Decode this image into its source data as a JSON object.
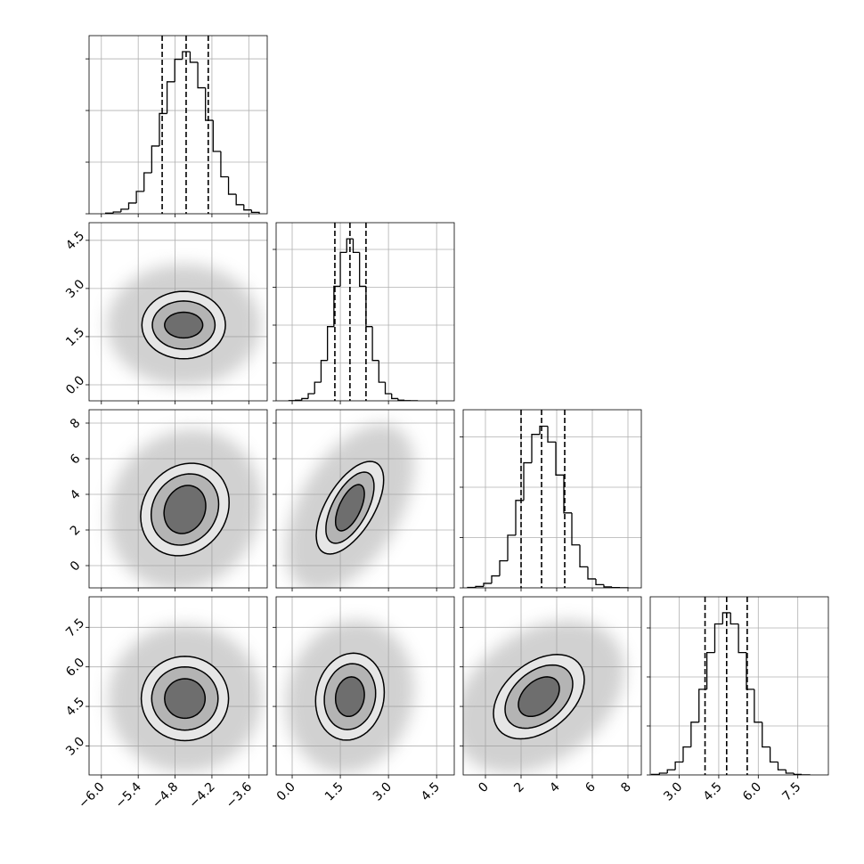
{
  "chart_data": [
    {
      "type": "histogram",
      "color": "#000000",
      "grid": true,
      "xlim": [
        -6.2,
        -3.3
      ],
      "xticks": [
        {
          "value": -6,
          "label": "−6.0"
        },
        {
          "value": -5.4,
          "label": "−5.4"
        },
        {
          "value": -4.8,
          "label": "−4.8"
        },
        {
          "value": -4.2,
          "label": "−4.2"
        },
        {
          "value": -3.6,
          "label": "−3.6"
        }
      ],
      "ylim": [
        0,
        1725
      ],
      "yticks": [
        0,
        500,
        1000,
        1500
      ],
      "bins": [
        -5.93,
        -5.805,
        -5.68,
        -5.555,
        -5.43,
        -5.305,
        -5.18,
        -5.055,
        -4.93,
        -4.805,
        -4.68,
        -4.555,
        -4.43,
        -4.305,
        -4.18,
        -4.055,
        -3.93,
        -3.805,
        -3.68,
        -3.555,
        -3.43
      ],
      "values": [
        6,
        17,
        44,
        104,
        217,
        397,
        656,
        971,
        1278,
        1496,
        1570,
        1467,
        1220,
        905,
        604,
        358,
        189,
        88,
        37,
        14
      ],
      "quantiles": [
        -5.01,
        -4.62,
        -4.26
      ]
    },
    {
      "type": "contour",
      "color": "#000000",
      "grid": true,
      "xlim": [
        -6.2,
        -3.3
      ],
      "xticks": [
        {
          "value": -6,
          "label": "−6.0"
        },
        {
          "value": -5.4,
          "label": "−5.4"
        },
        {
          "value": -4.8,
          "label": "−4.8"
        },
        {
          "value": -4.2,
          "label": "−4.2"
        },
        {
          "value": -3.6,
          "label": "−3.6"
        }
      ],
      "ylim": [
        -0.5,
        5.05
      ],
      "yticks": [
        {
          "value": 0,
          "label": "0.0"
        },
        1.5,
        {
          "value": 3,
          "label": "3.0"
        },
        4.5
      ],
      "cloud": {
        "center": [
          -4.66,
          1.86
        ],
        "extent": [
          1.25,
          1.9
        ],
        "corr": 0
      },
      "contours": [
        {
          "center": [
            -4.66,
            1.86
          ],
          "extent": [
            0.68,
            1.05
          ],
          "corr": 0
        },
        {
          "center": [
            -4.66,
            1.86
          ],
          "extent": [
            0.51,
            0.75
          ],
          "corr": 0
        },
        {
          "center": [
            -4.66,
            1.86
          ],
          "extent": [
            0.31,
            0.4
          ],
          "corr": 0
        }
      ]
    },
    {
      "type": "histogram",
      "color": "#000000",
      "grid": true,
      "xlim": [
        -0.5,
        5.05
      ],
      "xticks": [
        {
          "value": 0,
          "label": "0.0"
        },
        1.5,
        {
          "value": 3,
          "label": "3.0"
        },
        4.5
      ],
      "ylim": [
        0,
        2353
      ],
      "yticks": [
        0,
        500,
        1000,
        1500,
        2000
      ],
      "bins": [
        -0.1,
        0.1,
        0.3,
        0.5,
        0.7,
        0.9,
        1.1,
        1.3,
        1.5,
        1.7,
        1.9,
        2.1,
        2.3,
        2.5,
        2.7,
        2.9,
        3.1,
        3.3,
        3.5,
        3.7,
        3.9
      ],
      "values": [
        2,
        8,
        30,
        94,
        246,
        533,
        980,
        1513,
        1960,
        2140,
        1960,
        1513,
        980,
        533,
        246,
        94,
        30,
        8,
        2,
        1
      ],
      "quantiles": [
        1.33,
        1.8,
        2.3
      ]
    },
    {
      "type": "contour",
      "color": "#000000",
      "grid": true,
      "xlim": [
        -6.2,
        -3.3
      ],
      "xticks": [
        {
          "value": -6,
          "label": "−6.0"
        },
        {
          "value": -5.4,
          "label": "−5.4"
        },
        {
          "value": -4.8,
          "label": "−4.8"
        },
        {
          "value": -4.2,
          "label": "−4.2"
        },
        {
          "value": -3.6,
          "label": "−3.6"
        }
      ],
      "ylim": [
        -1.25,
        8.75
      ],
      "yticks": [
        0,
        2,
        4,
        6,
        8
      ],
      "cloud": {
        "center": [
          -4.64,
          3.15
        ],
        "extent": [
          1.25,
          4.5
        ],
        "corr": 0.1
      },
      "contours": [
        {
          "center": [
            -4.64,
            3.15
          ],
          "extent": [
            0.72,
            2.6
          ],
          "corr": 0.15
        },
        {
          "center": [
            -4.64,
            3.15
          ],
          "extent": [
            0.55,
            2.0
          ],
          "corr": 0.15
        },
        {
          "center": [
            -4.64,
            3.15
          ],
          "extent": [
            0.34,
            1.35
          ],
          "corr": 0.15
        }
      ]
    },
    {
      "type": "contour",
      "color": "#000000",
      "grid": true,
      "xlim": [
        -0.5,
        5.05
      ],
      "xticks": [
        {
          "value": 0,
          "label": "0.0"
        },
        1.5,
        {
          "value": 3,
          "label": "3.0"
        },
        4.5
      ],
      "ylim": [
        -1.25,
        8.75
      ],
      "yticks": [
        0,
        2,
        4,
        6,
        8
      ],
      "cloud": {
        "center": [
          1.8,
          3.25
        ],
        "extent": [
          2.0,
          4.7
        ],
        "corr": 0.5
      },
      "contours": [
        {
          "center": [
            1.8,
            3.25
          ],
          "extent": [
            1.05,
            2.6
          ],
          "corr": 0.6
        },
        {
          "center": [
            1.8,
            3.25
          ],
          "extent": [
            0.75,
            2.0
          ],
          "corr": 0.6
        },
        {
          "center": [
            1.8,
            3.25
          ],
          "extent": [
            0.45,
            1.3
          ],
          "corr": 0.6
        }
      ]
    },
    {
      "type": "histogram",
      "color": "#000000",
      "grid": true,
      "xlim": [
        -1.25,
        8.75
      ],
      "xticks": [
        0,
        2,
        4,
        6,
        8
      ],
      "ylim": [
        0,
        1770
      ],
      "yticks": [
        0,
        500,
        1000,
        1500
      ],
      "bins": [
        -1,
        -0.55,
        -0.1,
        0.35,
        0.8,
        1.25,
        1.7,
        2.15,
        2.6,
        3.05,
        3.5,
        3.95,
        4.4,
        4.85,
        5.3,
        5.75,
        6.2,
        6.65,
        7.1,
        7.55,
        8
      ],
      "values": [
        4,
        14,
        45,
        119,
        269,
        523,
        869,
        1243,
        1525,
        1606,
        1449,
        1121,
        745,
        427,
        209,
        89,
        32,
        10,
        3,
        1
      ],
      "quantiles": [
        2.0,
        3.15,
        4.45
      ]
    },
    {
      "type": "contour",
      "color": "#000000",
      "grid": true,
      "xlim": [
        -6.2,
        -3.3
      ],
      "xticks": [
        {
          "value": -6,
          "label": "−6.0"
        },
        {
          "value": -5.4,
          "label": "−5.4"
        },
        {
          "value": -4.8,
          "label": "−4.8"
        },
        {
          "value": -4.2,
          "label": "−4.2"
        },
        {
          "value": -3.6,
          "label": "−3.6"
        }
      ],
      "ylim": [
        1.9,
        8.66
      ],
      "yticks": [
        {
          "value": 3,
          "label": "3.0"
        },
        4.5,
        {
          "value": 6,
          "label": "6.0"
        },
        7.5
      ],
      "cloud": {
        "center": [
          -4.64,
          4.8
        ],
        "extent": [
          1.25,
          2.8
        ],
        "corr": 0
      },
      "contours": [
        {
          "center": [
            -4.64,
            4.8
          ],
          "extent": [
            0.71,
            1.6
          ],
          "corr": 0
        },
        {
          "center": [
            -4.64,
            4.8
          ],
          "extent": [
            0.54,
            1.2
          ],
          "corr": 0
        },
        {
          "center": [
            -4.64,
            4.8
          ],
          "extent": [
            0.33,
            0.75
          ],
          "corr": 0
        }
      ]
    },
    {
      "type": "contour",
      "color": "#000000",
      "grid": true,
      "xlim": [
        -0.5,
        5.05
      ],
      "xticks": [
        {
          "value": 0,
          "label": "0.0"
        },
        1.5,
        {
          "value": 3,
          "label": "3.0"
        },
        4.5
      ],
      "ylim": [
        1.9,
        8.66
      ],
      "yticks": [
        {
          "value": 3,
          "label": "3.0"
        },
        4.5,
        {
          "value": 6,
          "label": "6.0"
        },
        7.5
      ],
      "cloud": {
        "center": [
          1.8,
          4.87
        ],
        "extent": [
          2.0,
          2.9
        ],
        "corr": 0.1
      },
      "contours": [
        {
          "center": [
            1.8,
            4.87
          ],
          "extent": [
            1.07,
            1.65
          ],
          "corr": 0.1
        },
        {
          "center": [
            1.8,
            4.87
          ],
          "extent": [
            0.8,
            1.25
          ],
          "corr": 0.1
        },
        {
          "center": [
            1.8,
            4.87
          ],
          "extent": [
            0.45,
            0.75
          ],
          "corr": 0.1
        }
      ]
    },
    {
      "type": "contour",
      "color": "#000000",
      "grid": true,
      "xlim": [
        -1.25,
        8.75
      ],
      "xticks": [
        0,
        2,
        4,
        6,
        8
      ],
      "ylim": [
        1.9,
        8.66
      ],
      "yticks": [
        {
          "value": 3,
          "label": "3.0"
        },
        4.5,
        {
          "value": 6,
          "label": "6.0"
        },
        7.5
      ],
      "cloud": {
        "center": [
          3.0,
          4.87
        ],
        "extent": [
          4.8,
          2.9
        ],
        "corr": 0.35
      },
      "contours": [
        {
          "center": [
            3.0,
            4.87
          ],
          "extent": [
            2.55,
            1.6
          ],
          "corr": 0.4
        },
        {
          "center": [
            3.0,
            4.87
          ],
          "extent": [
            1.9,
            1.2
          ],
          "corr": 0.4
        },
        {
          "center": [
            3.0,
            4.87
          ],
          "extent": [
            1.15,
            0.75
          ],
          "corr": 0.4
        }
      ]
    },
    {
      "type": "histogram",
      "color": "#000000",
      "grid": true,
      "xlim": [
        1.9,
        8.66
      ],
      "xticks": [
        {
          "value": 3,
          "label": "3.0"
        },
        4.5,
        {
          "value": 6,
          "label": "6.0"
        },
        7.5
      ],
      "ylim": [
        0,
        1818
      ],
      "yticks": [
        0,
        500,
        1000,
        1500
      ],
      "bins": [
        1.95,
        2.25,
        2.55,
        2.85,
        3.15,
        3.45,
        3.75,
        4.05,
        4.35,
        4.65,
        4.95,
        5.25,
        5.55,
        5.85,
        6.15,
        6.45,
        6.75,
        7.05,
        7.35,
        7.65,
        7.95
      ],
      "values": [
        5,
        18,
        52,
        132,
        285,
        538,
        874,
        1249,
        1541,
        1655,
        1541,
        1249,
        874,
        538,
        285,
        132,
        52,
        18,
        5,
        1
      ],
      "quantiles": [
        3.98,
        4.8,
        5.58
      ]
    }
  ]
}
